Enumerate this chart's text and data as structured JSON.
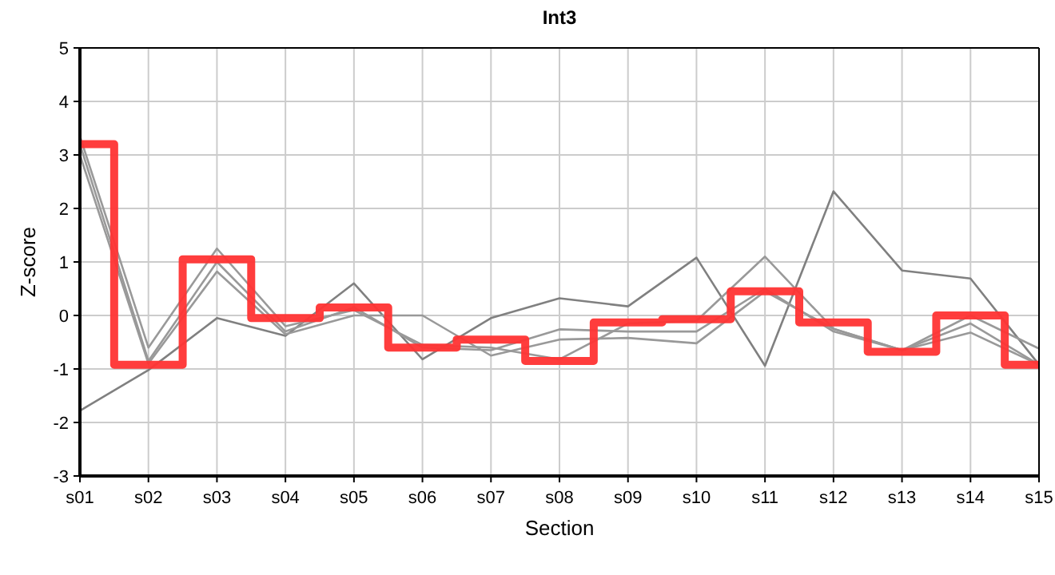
{
  "chart_data": {
    "type": "line",
    "title": "Int3",
    "xlabel": "Section",
    "ylabel": "Z-score",
    "categories": [
      "s01",
      "s02",
      "s03",
      "s04",
      "s05",
      "s06",
      "s07",
      "s08",
      "s09",
      "s10",
      "s11",
      "s12",
      "s13",
      "s14",
      "s15"
    ],
    "ylim": [
      -3,
      5
    ],
    "yticks": [
      -3,
      -2,
      -1,
      0,
      1,
      2,
      3,
      4,
      5
    ],
    "grid": true,
    "marker": "none",
    "line_style": "solid",
    "series": [
      {
        "color": "#808080",
        "values": [
          -1.78,
          -1.02,
          -0.05,
          -0.38,
          0.6,
          -0.82,
          -0.05,
          0.32,
          0.17,
          1.08,
          -0.94,
          2.32,
          0.84,
          0.69,
          -0.92
        ]
      },
      {
        "color": "#999999",
        "values": [
          3.35,
          -0.6,
          1.25,
          -0.2,
          0.1,
          -0.55,
          -0.6,
          -0.82,
          -0.15,
          -0.1,
          1.1,
          -0.25,
          -0.65,
          0,
          -0.62
        ]
      },
      {
        "color": "#999999",
        "values": [
          3.2,
          -0.85,
          1.0,
          -0.3,
          0.15,
          -0.6,
          -0.65,
          -0.26,
          -0.3,
          -0.3,
          0.5,
          -0.3,
          -0.65,
          -0.15,
          -0.92
        ]
      },
      {
        "color": "#999999",
        "values": [
          3.0,
          -0.9,
          0.82,
          -0.35,
          0.0,
          0.0,
          -0.75,
          -0.45,
          -0.42,
          -0.52,
          0.45,
          -0.25,
          -0.65,
          -0.32,
          -0.92
        ]
      },
      {
        "type": "step",
        "color": "#ff3333",
        "values": [
          3.2,
          -0.92,
          1.05,
          -0.05,
          0.15,
          -0.6,
          -0.45,
          -0.85,
          -0.13,
          -0.07,
          0.45,
          -0.13,
          -0.68,
          0,
          -0.92
        ]
      }
    ]
  }
}
